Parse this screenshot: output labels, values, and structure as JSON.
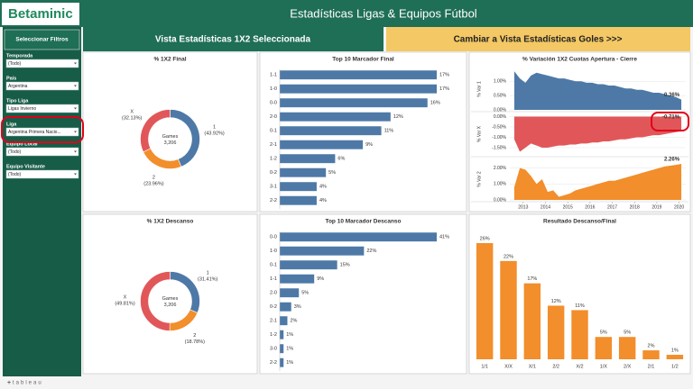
{
  "header": {
    "logo": "Betaminic",
    "title": "Estadísticas Ligas & Equipos Fútbol"
  },
  "sidebar": {
    "title": "Seleccionar Filtros",
    "filters": [
      {
        "label": "Temporada",
        "value": "(Todo)"
      },
      {
        "label": "País",
        "value": "Argentina"
      },
      {
        "label": "Tipo Liga",
        "value": "Ligas Invierno"
      },
      {
        "label": "Liga",
        "value": "Argentina Primera Nacio..."
      },
      {
        "label": "Equipo Local",
        "value": "(Todo)"
      },
      {
        "label": "Equipo Visitante",
        "value": "(Todo)"
      }
    ]
  },
  "buttons": [
    "Vista Estadísticas 1X2 Seleccionada",
    "Cambiar a Vista Estadísticas Goles >>>"
  ],
  "footer": "tableau",
  "chart_data": [
    {
      "type": "pie",
      "title": "% 1X2 Final",
      "categories": [
        "1",
        "2",
        "X"
      ],
      "values": [
        43.92,
        23.96,
        32.13
      ],
      "value_labels": [
        "(43.92%)",
        "(23.96%)",
        "(32.13%)"
      ],
      "colors": [
        "#4e79a7",
        "#f28e2b",
        "#e15759"
      ],
      "center_label": "Games",
      "total": 3206,
      "total_label": "3,206"
    },
    {
      "type": "hbar",
      "title": "Top 10 Marcador Final",
      "categories": [
        "1-1",
        "1-0",
        "0-0",
        "2-0",
        "0-1",
        "2-1",
        "1-2",
        "0-2",
        "3-1",
        "2-2"
      ],
      "values": [
        17,
        17,
        16,
        12,
        11,
        9,
        6,
        5,
        4,
        4
      ],
      "value_labels": [
        "17%",
        "17%",
        "16%",
        "12%",
        "11%",
        "9%",
        "6%",
        "5%",
        "4%",
        "4%"
      ],
      "color": "#4e79a7"
    },
    {
      "type": "area",
      "title": "% Variación 1X2 Cuotas Apertura - Cierre",
      "x": [
        2012.6,
        2012.85,
        2013.1,
        2013.35,
        2013.6,
        2013.85,
        2014.1,
        2014.35,
        2014.6,
        2014.85,
        2015.1,
        2015.35,
        2015.6,
        2015.85,
        2016.1,
        2016.35,
        2016.6,
        2016.85,
        2017.1,
        2017.35,
        2017.6,
        2017.85,
        2018.1,
        2018.35,
        2018.6,
        2018.85,
        2019.1,
        2019.35,
        2019.6,
        2019.85,
        2020.1
      ],
      "xlim": [
        2012.4,
        2020.3
      ],
      "xticks": [
        2013,
        2014,
        2015,
        2016,
        2017,
        2018,
        2019,
        2020
      ],
      "series": [
        {
          "name": "% Var 1",
          "color": "#4e79a7",
          "ylim": [
            0,
            1.45
          ],
          "yticks": [
            {
              "value": 0,
              "label": "0.00%"
            },
            {
              "value": 0.5,
              "label": "0.50%"
            },
            {
              "value": 1,
              "label": "1.00%"
            }
          ],
          "values": [
            1.35,
            1.1,
            0.95,
            1.2,
            1.3,
            1.25,
            1.2,
            1.15,
            1.1,
            1.1,
            1.05,
            1.0,
            1.0,
            0.95,
            0.95,
            0.9,
            0.9,
            0.85,
            0.85,
            0.8,
            0.75,
            0.75,
            0.7,
            0.7,
            0.65,
            0.6,
            0.6,
            0.55,
            0.5,
            0.45,
            0.36
          ],
          "end_label": "0.36%"
        },
        {
          "name": "% Var X",
          "color": "#e15759",
          "ylim": [
            -1.85,
            0.15
          ],
          "yticks": [
            {
              "value": 0,
              "label": "0.00%"
            },
            {
              "value": -0.5,
              "label": "-0.50%"
            },
            {
              "value": -1,
              "label": "-1.00%"
            },
            {
              "value": -1.5,
              "label": "-1.50%"
            }
          ],
          "values": [
            -1.1,
            -1.7,
            -1.5,
            -1.3,
            -1.4,
            -1.5,
            -1.5,
            -1.45,
            -1.4,
            -1.4,
            -1.35,
            -1.35,
            -1.3,
            -1.3,
            -1.25,
            -1.25,
            -1.2,
            -1.2,
            -1.15,
            -1.1,
            -1.1,
            -1.05,
            -1.0,
            -1.0,
            -0.95,
            -0.9,
            -0.9,
            -0.85,
            -0.8,
            -0.75,
            -0.71
          ],
          "end_label": "-0.71%"
        },
        {
          "name": "% Var 2",
          "color": "#f28e2b",
          "ylim": [
            0,
            2.6
          ],
          "yticks": [
            {
              "value": 0,
              "label": "0.00%"
            },
            {
              "value": 1,
              "label": "1.00%"
            },
            {
              "value": 2,
              "label": "2.00%"
            }
          ],
          "values": [
            0.8,
            2.0,
            1.9,
            1.5,
            1.0,
            1.3,
            0.5,
            0.6,
            0.2,
            0.3,
            0.4,
            0.6,
            0.7,
            0.8,
            0.9,
            1.0,
            1.1,
            1.2,
            1.2,
            1.3,
            1.4,
            1.5,
            1.6,
            1.7,
            1.8,
            1.9,
            2.0,
            2.1,
            2.15,
            2.2,
            2.26
          ],
          "end_label": "2.26%"
        }
      ]
    },
    {
      "type": "pie",
      "title": "% 1X2 Descanso",
      "categories": [
        "1",
        "2",
        "X"
      ],
      "values": [
        31.41,
        18.78,
        49.81
      ],
      "value_labels": [
        "(31.41%)",
        "(18.78%)",
        "(49.81%)"
      ],
      "colors": [
        "#4e79a7",
        "#f28e2b",
        "#e15759"
      ],
      "center_label": "Games",
      "total": 3206,
      "total_label": "3,206"
    },
    {
      "type": "hbar",
      "title": "Top 10 Marcador Descanso",
      "categories": [
        "0-0",
        "1-0",
        "0-1",
        "1-1",
        "2-0",
        "0-2",
        "2-1",
        "1-2",
        "3-0",
        "2-2"
      ],
      "values": [
        41,
        22,
        15,
        9,
        5,
        3,
        2,
        1,
        1,
        1
      ],
      "value_labels": [
        "41%",
        "22%",
        "15%",
        "9%",
        "5%",
        "3%",
        "2%",
        "1%",
        "1%",
        "1%"
      ],
      "color": "#4e79a7"
    },
    {
      "type": "bar",
      "title": "Resultado Descanso/Final",
      "categories": [
        "1/1",
        "X/X",
        "X/1",
        "2/2",
        "X/2",
        "1/X",
        "2/X",
        "2/1",
        "1/2"
      ],
      "values": [
        26,
        22,
        17,
        12,
        11,
        5,
        5,
        2,
        1
      ],
      "value_labels": [
        "26%",
        "22%",
        "17%",
        "12%",
        "11%",
        "5%",
        "5%",
        "2%",
        "1%"
      ],
      "color": "#f28e2b"
    }
  ]
}
